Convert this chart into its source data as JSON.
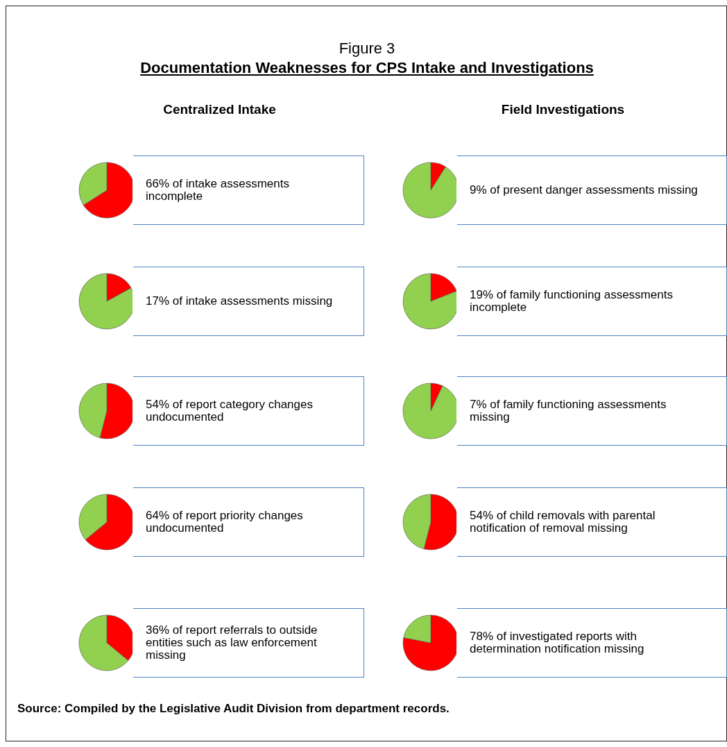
{
  "chart_data": [
    {
      "type": "other",
      "title": "Figure 3",
      "subtitle": "Documentation Weaknesses for CPS Intake and Investigations",
      "annotations": [
        "Source:  Compiled by the Legislative Audit Division from department records."
      ]
    },
    {
      "type": "pie",
      "title": "Centralized Intake",
      "categories": [
        null,
        null
      ],
      "values": [
        66,
        34
      ],
      "colors": [
        "#ff0000",
        "#92d050"
      ],
      "annotations": [
        "66% of intake assessments incomplete"
      ]
    },
    {
      "type": "pie",
      "title": "Field Investigations",
      "categories": [
        null,
        null
      ],
      "values": [
        9,
        91
      ],
      "colors": [
        "#ff0000",
        "#92d050"
      ],
      "annotations": [
        "9% of present danger assessments missing"
      ]
    },
    {
      "type": "pie",
      "categories": [
        null,
        null
      ],
      "values": [
        17,
        83
      ],
      "colors": [
        "#ff0000",
        "#92d050"
      ],
      "annotations": [
        "17% of intake assessments missing"
      ]
    },
    {
      "type": "pie",
      "categories": [
        null,
        null
      ],
      "values": [
        19,
        81
      ],
      "colors": [
        "#ff0000",
        "#92d050"
      ],
      "annotations": [
        "19% of family functioning assessments incomplete"
      ]
    },
    {
      "type": "pie",
      "categories": [
        null,
        null
      ],
      "values": [
        54,
        46
      ],
      "colors": [
        "#ff0000",
        "#92d050"
      ],
      "annotations": [
        "54% of report category changes undocumented"
      ]
    },
    {
      "type": "pie",
      "categories": [
        null,
        null
      ],
      "values": [
        7,
        93
      ],
      "colors": [
        "#ff0000",
        "#92d050"
      ],
      "annotations": [
        "7% of family functioning assessments missing"
      ]
    },
    {
      "type": "pie",
      "categories": [
        null,
        null
      ],
      "values": [
        64,
        36
      ],
      "colors": [
        "#ff0000",
        "#92d050"
      ],
      "annotations": [
        "64% of report priority changes undocumented"
      ]
    },
    {
      "type": "pie",
      "categories": [
        null,
        null
      ],
      "values": [
        54,
        46
      ],
      "colors": [
        "#ff0000",
        "#92d050"
      ],
      "annotations": [
        "54% of child removals with parental notification of removal missing"
      ]
    },
    {
      "type": "pie",
      "categories": [
        null,
        null
      ],
      "values": [
        36,
        64
      ],
      "colors": [
        "#ff0000",
        "#92d050"
      ],
      "annotations": [
        "36% of report referrals to outside entities such as law enforcement missing"
      ]
    },
    {
      "type": "pie",
      "categories": [
        null,
        null
      ],
      "values": [
        78,
        22
      ],
      "colors": [
        "#ff0000",
        "#92d050"
      ],
      "annotations": [
        "78% of investigated reports with determination notification missing"
      ]
    }
  ]
}
